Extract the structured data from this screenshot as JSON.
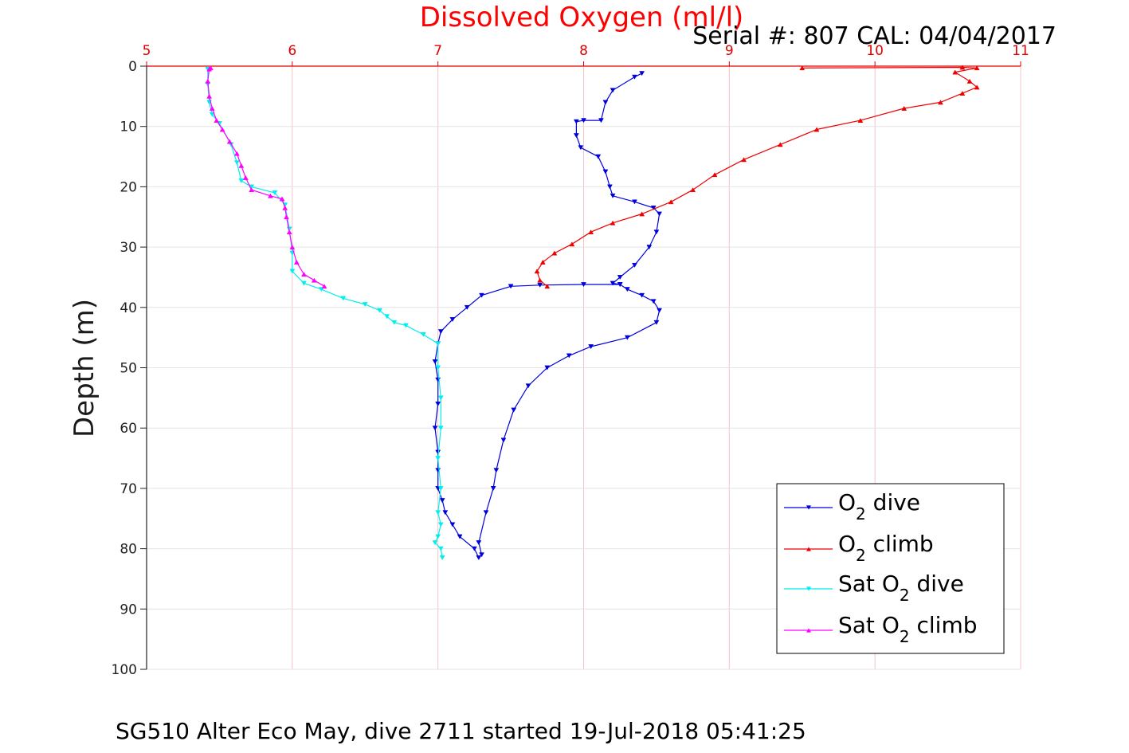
{
  "chart_data": {
    "type": "line",
    "title": "Dissolved Oxygen (ml/l)",
    "subtitle": "Serial #: 807  CAL: 04/04/2017",
    "xlabel": "Dissolved Oxygen (ml/l)",
    "ylabel": "Depth (m)",
    "caption": "SG510 Alter Eco May, dive 2711 started 19-Jul-2018 05:41:25",
    "xlim": [
      5,
      11
    ],
    "ylim": [
      0,
      100
    ],
    "y_reversed": true,
    "x_axis_position": "top",
    "x_ticks": [
      "5",
      "6",
      "7",
      "8",
      "9",
      "10",
      "11"
    ],
    "y_ticks": [
      "0",
      "10",
      "20",
      "30",
      "40",
      "50",
      "60",
      "70",
      "80",
      "90",
      "100"
    ],
    "grid": true,
    "legend_position": "bottom-right",
    "series": [
      {
        "name": "O2 dive",
        "legend_main": "O",
        "legend_sub": "2",
        "legend_rest": " dive",
        "legend_prefix": "",
        "color": "#0000dd",
        "marker": "triangle-down",
        "x": [
          8.4,
          8.35,
          8.2,
          8.15,
          8.12,
          8.0,
          7.95,
          7.95,
          7.98,
          8.1,
          8.15,
          8.18,
          8.2,
          8.35,
          8.48,
          8.52,
          8.5,
          8.45,
          8.35,
          8.25,
          8.2,
          8.25,
          8.0,
          7.7,
          7.5,
          7.3,
          7.2,
          7.1,
          7.02,
          7.0,
          6.98,
          7.0,
          7.0,
          6.98,
          7.0,
          7.0,
          7.0,
          7.03,
          7.05,
          7.1,
          7.15,
          7.25,
          7.28,
          7.3,
          7.28,
          7.33,
          7.38,
          7.4,
          7.45,
          7.52,
          7.62,
          7.75,
          7.9,
          8.05,
          8.3,
          8.5,
          8.52,
          8.48,
          8.4,
          8.3,
          8.25
        ],
        "y": [
          1.2,
          1.8,
          4.0,
          6.0,
          9.0,
          9.0,
          9.2,
          11.5,
          13.5,
          15.0,
          17.5,
          20.0,
          21.5,
          22.5,
          23.5,
          24.5,
          27.5,
          30.0,
          33.0,
          35.0,
          36.0,
          36.2,
          36.2,
          36.3,
          36.5,
          38.0,
          40.0,
          42.0,
          44.0,
          46.0,
          49.0,
          52.0,
          56.0,
          60.0,
          64.0,
          67.0,
          70.0,
          72.0,
          74.0,
          76.0,
          78.0,
          80.0,
          81.5,
          81.0,
          79.0,
          74.0,
          70.0,
          67.0,
          62.0,
          57.0,
          53.0,
          50.0,
          48.0,
          46.5,
          45.0,
          42.5,
          40.5,
          39.0,
          38.0,
          37.0,
          36.2
        ]
      },
      {
        "name": "O2 climb",
        "legend_main": "O",
        "legend_sub": "2",
        "legend_rest": " climb",
        "legend_prefix": "",
        "color": "#ee0000",
        "marker": "triangle-up",
        "x": [
          7.75,
          7.7,
          7.68,
          7.72,
          7.8,
          7.92,
          8.05,
          8.2,
          8.4,
          8.6,
          8.75,
          8.9,
          9.1,
          9.35,
          9.6,
          9.9,
          10.2,
          10.45,
          10.6,
          10.7,
          10.65,
          10.55,
          10.7,
          10.6,
          9.5
        ],
        "y": [
          36.5,
          35.5,
          34.0,
          32.5,
          31.0,
          29.5,
          27.5,
          26.0,
          24.5,
          22.5,
          20.5,
          18.0,
          15.5,
          13.0,
          10.5,
          9.0,
          7.0,
          6.0,
          4.5,
          3.5,
          2.5,
          1.0,
          0.3,
          0.2,
          0.3
        ]
      },
      {
        "name": "Sat O2 dive",
        "legend_main": "O",
        "legend_sub": "2",
        "legend_rest": " dive",
        "legend_prefix": "Sat ",
        "color": "#00eeee",
        "marker": "triangle-down",
        "x": [
          5.42,
          5.42,
          5.43,
          5.45,
          5.5,
          5.58,
          5.62,
          5.65,
          5.72,
          5.88,
          5.95,
          5.98,
          6.0,
          6.0,
          6.08,
          6.2,
          6.35,
          6.5,
          6.6,
          6.65,
          6.7,
          6.78,
          6.9,
          7.0,
          7.0,
          7.02,
          7.02,
          7.0,
          7.02,
          7.0,
          7.02,
          7.0,
          6.98,
          7.02,
          7.03
        ],
        "y": [
          0.5,
          3.0,
          6.0,
          8.0,
          9.5,
          13.0,
          16.0,
          19.0,
          20.0,
          21.0,
          23.0,
          27.0,
          31.0,
          34.0,
          36.0,
          37.0,
          38.5,
          39.5,
          40.5,
          41.5,
          42.5,
          43.0,
          44.5,
          46.0,
          50.0,
          55.0,
          60.0,
          65.0,
          70.0,
          74.0,
          76.0,
          78.0,
          79.0,
          80.0,
          81.5
        ]
      },
      {
        "name": "Sat O2 climb",
        "legend_main": "O",
        "legend_sub": "2",
        "legend_rest": " climb",
        "legend_prefix": "Sat ",
        "color": "#ff00ff",
        "marker": "triangle-up",
        "x": [
          6.22,
          6.15,
          6.08,
          6.03,
          6.0,
          5.98,
          5.96,
          5.95,
          5.93,
          5.85,
          5.72,
          5.68,
          5.65,
          5.62,
          5.57,
          5.52,
          5.48,
          5.45,
          5.43,
          5.42,
          5.43,
          5.44
        ],
        "y": [
          36.5,
          35.5,
          34.5,
          32.5,
          30.0,
          27.5,
          25.0,
          23.5,
          22.0,
          21.5,
          20.5,
          18.5,
          16.5,
          14.5,
          12.5,
          10.5,
          9.0,
          7.0,
          5.0,
          2.5,
          0.5,
          0.3
        ]
      }
    ]
  }
}
